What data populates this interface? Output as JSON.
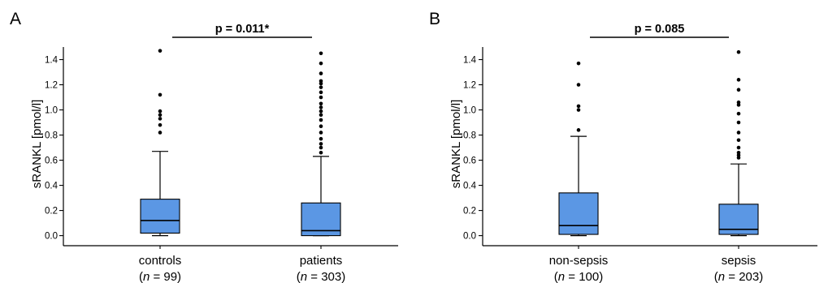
{
  "chart_data": [
    {
      "type": "box",
      "panel_label": "A",
      "ylabel": "sRANKL [pmol/l]",
      "ylim": [
        -0.08,
        1.5
      ],
      "yticks": [
        0.0,
        0.2,
        0.4,
        0.6,
        0.8,
        1.0,
        1.2,
        1.4
      ],
      "ytick_labels": [
        "0.0",
        "0.2",
        "0.4",
        "0.6",
        "0.8",
        "1.0",
        "1.2",
        "1.4"
      ],
      "significance": {
        "label": "p = 0.011*",
        "between": [
          "controls",
          "patients"
        ]
      },
      "box_color": "#5b97e4",
      "groups": [
        {
          "name": "controls",
          "n_prefix": "(",
          "n_italic": "n",
          "n_suffix": " = 99)",
          "whisker_low": 0.0,
          "q1": 0.02,
          "median": 0.12,
          "q3": 0.29,
          "whisker_high": 0.67,
          "outliers": [
            0.82,
            0.88,
            0.93,
            0.96,
            0.99,
            1.12,
            1.47
          ]
        },
        {
          "name": "patients",
          "n_prefix": "(",
          "n_italic": "n",
          "n_suffix": " = 303)",
          "whisker_low": 0.0,
          "q1": 0.0,
          "median": 0.04,
          "q3": 0.26,
          "whisker_high": 0.63,
          "outliers": [
            0.66,
            0.7,
            0.73,
            0.77,
            0.82,
            0.87,
            0.92,
            0.96,
            0.99,
            1.02,
            1.05,
            1.1,
            1.14,
            1.18,
            1.21,
            1.23,
            1.29,
            1.37,
            1.45
          ]
        }
      ]
    },
    {
      "type": "box",
      "panel_label": "B",
      "ylabel": "sRANKL [pmol/l]",
      "ylim": [
        -0.08,
        1.5
      ],
      "yticks": [
        0.0,
        0.2,
        0.4,
        0.6,
        0.8,
        1.0,
        1.2,
        1.4
      ],
      "ytick_labels": [
        "0.0",
        "0.2",
        "0.4",
        "0.6",
        "0.8",
        "1.0",
        "1.2",
        "1.4"
      ],
      "significance": {
        "label": "p = 0.085",
        "between": [
          "non-sepsis",
          "sepsis"
        ]
      },
      "box_color": "#5b97e4",
      "groups": [
        {
          "name": "non-sepsis",
          "n_prefix": "(",
          "n_italic": "n",
          "n_suffix": " = 100)",
          "whisker_low": 0.0,
          "q1": 0.01,
          "median": 0.08,
          "q3": 0.34,
          "whisker_high": 0.79,
          "outliers": [
            0.84,
            1.0,
            1.03,
            1.2,
            1.37
          ]
        },
        {
          "name": "sepsis",
          "n_prefix": "(",
          "n_italic": "n",
          "n_suffix": " = 203)",
          "whisker_low": 0.0,
          "q1": 0.01,
          "median": 0.05,
          "q3": 0.25,
          "whisker_high": 0.57,
          "outliers": [
            0.62,
            0.64,
            0.66,
            0.7,
            0.76,
            0.82,
            0.9,
            0.97,
            1.04,
            1.06,
            1.16,
            1.24,
            1.46
          ]
        }
      ]
    }
  ]
}
